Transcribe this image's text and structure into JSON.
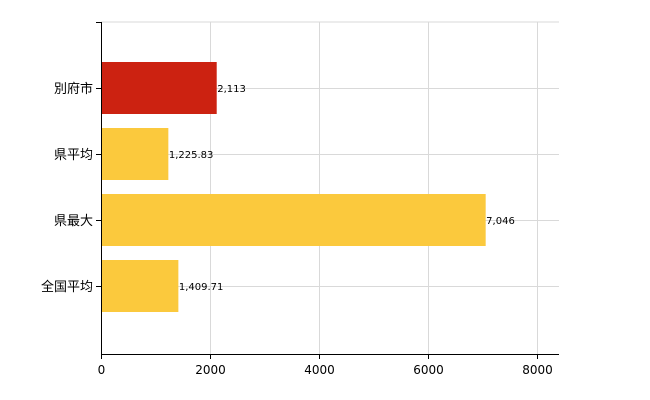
{
  "chart_data": {
    "type": "bar",
    "orientation": "horizontal",
    "title": "",
    "xlabel": "",
    "ylabel": "",
    "xlim": [
      0,
      8400
    ],
    "x_ticks": [
      0,
      2000,
      4000,
      6000,
      8000
    ],
    "x_tick_labels": [
      "0",
      "2000",
      "4000",
      "6000",
      "8000"
    ],
    "grid": true,
    "legend": "none",
    "categories": [
      "別府市",
      "県平均",
      "県最大",
      "全国平均"
    ],
    "values": [
      2113,
      1225.83,
      7046,
      1409.71
    ],
    "value_labels": [
      "2,113",
      "1,225.83",
      "7,046",
      "1,409.71"
    ],
    "colors": [
      "#cc2211",
      "#fbc93d",
      "#fbc93d",
      "#fbc93d"
    ]
  }
}
